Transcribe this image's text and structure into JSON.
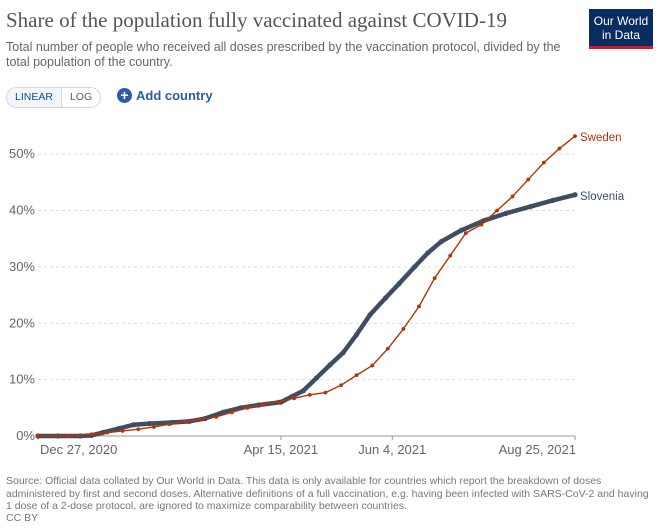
{
  "header": {
    "title": "Share of the population fully vaccinated against COVID-19",
    "subtitle": "Total number of people who received all doses prescribed by the vaccination protocol, divided by the total population of the country.",
    "logo_line1": "Our World",
    "logo_line2": "in Data"
  },
  "controls": {
    "linear_label": "LINEAR",
    "log_label": "LOG",
    "active_scale": "LINEAR",
    "add_country_label": "Add country",
    "add_icon": "plus-circle-icon"
  },
  "footer": {
    "source": "Source: Official data collated by Our World in Data. This data is only available for countries which report the breakdown of doses administered by first and second doses. Alternative definitions of a full vaccination, e.g. having been infected with SARS-CoV-2 and having 1 dose of a 2-dose protocol, are ignored to maximize comparability between countries.",
    "license": "CC BY"
  },
  "chart_data": {
    "type": "line",
    "x_axis": {
      "type": "date",
      "range": [
        "2020-12-27",
        "2021-08-25"
      ],
      "tick_labels": [
        "Dec 27, 2020",
        "Apr 15, 2021",
        "Jun 4, 2021",
        "Aug 25, 2021"
      ],
      "tick_dates": [
        "2020-12-27",
        "2021-04-15",
        "2021-06-04",
        "2021-08-25"
      ]
    },
    "y_axis": {
      "unit": "%",
      "range": [
        0,
        55
      ],
      "ticks": [
        0,
        10,
        20,
        30,
        40,
        50
      ],
      "tick_labels": [
        "0%",
        "10%",
        "20%",
        "30%",
        "40%",
        "50%"
      ]
    },
    "grid": "horizontal dashed",
    "series": [
      {
        "name": "Slovenia",
        "color": "#3f4d63",
        "marker": "dense points",
        "points": [
          [
            "2020-12-27",
            0.0
          ],
          [
            "2021-01-05",
            0.0
          ],
          [
            "2021-01-15",
            0.0
          ],
          [
            "2021-01-20",
            0.1
          ],
          [
            "2021-01-25",
            0.6
          ],
          [
            "2021-02-01",
            1.3
          ],
          [
            "2021-02-08",
            2.0
          ],
          [
            "2021-02-15",
            2.2
          ],
          [
            "2021-02-25",
            2.4
          ],
          [
            "2021-03-05",
            2.6
          ],
          [
            "2021-03-12",
            3.1
          ],
          [
            "2021-03-20",
            4.2
          ],
          [
            "2021-03-28",
            5.0
          ],
          [
            "2021-04-05",
            5.5
          ],
          [
            "2021-04-15",
            6.0
          ],
          [
            "2021-04-20",
            7.0
          ],
          [
            "2021-04-25",
            8.0
          ],
          [
            "2021-05-01",
            10.3
          ],
          [
            "2021-05-07",
            12.6
          ],
          [
            "2021-05-13",
            14.8
          ],
          [
            "2021-05-19",
            18.0
          ],
          [
            "2021-05-25",
            21.5
          ],
          [
            "2021-06-01",
            24.5
          ],
          [
            "2021-06-07",
            27.0
          ],
          [
            "2021-06-14",
            30.0
          ],
          [
            "2021-06-20",
            32.5
          ],
          [
            "2021-06-26",
            34.5
          ],
          [
            "2021-07-05",
            36.5
          ],
          [
            "2021-07-15",
            38.2
          ],
          [
            "2021-07-25",
            39.5
          ],
          [
            "2021-08-05",
            40.7
          ],
          [
            "2021-08-15",
            41.8
          ],
          [
            "2021-08-25",
            42.8
          ]
        ]
      },
      {
        "name": "Sweden",
        "color": "#b13507",
        "marker": "small dots",
        "points": [
          [
            "2020-12-27",
            0.0
          ],
          [
            "2021-01-10",
            0.0
          ],
          [
            "2021-01-20",
            0.3
          ],
          [
            "2021-01-27",
            0.6
          ],
          [
            "2021-02-03",
            0.9
          ],
          [
            "2021-02-10",
            1.2
          ],
          [
            "2021-02-17",
            1.6
          ],
          [
            "2021-02-24",
            2.1
          ],
          [
            "2021-03-03",
            2.6
          ],
          [
            "2021-03-10",
            3.0
          ],
          [
            "2021-03-17",
            3.4
          ],
          [
            "2021-03-24",
            4.2
          ],
          [
            "2021-03-31",
            5.0
          ],
          [
            "2021-04-07",
            5.6
          ],
          [
            "2021-04-14",
            6.1
          ],
          [
            "2021-04-21",
            6.7
          ],
          [
            "2021-04-28",
            7.3
          ],
          [
            "2021-05-05",
            7.7
          ],
          [
            "2021-05-12",
            9.0
          ],
          [
            "2021-05-19",
            10.8
          ],
          [
            "2021-05-26",
            12.5
          ],
          [
            "2021-06-02",
            15.5
          ],
          [
            "2021-06-09",
            19.0
          ],
          [
            "2021-06-16",
            23.0
          ],
          [
            "2021-06-23",
            28.0
          ],
          [
            "2021-06-30",
            32.0
          ],
          [
            "2021-07-07",
            36.0
          ],
          [
            "2021-07-14",
            37.5
          ],
          [
            "2021-07-21",
            40.0
          ],
          [
            "2021-07-28",
            42.5
          ],
          [
            "2021-08-04",
            45.5
          ],
          [
            "2021-08-11",
            48.5
          ],
          [
            "2021-08-18",
            51.0
          ],
          [
            "2021-08-25",
            53.2
          ]
        ]
      }
    ]
  }
}
